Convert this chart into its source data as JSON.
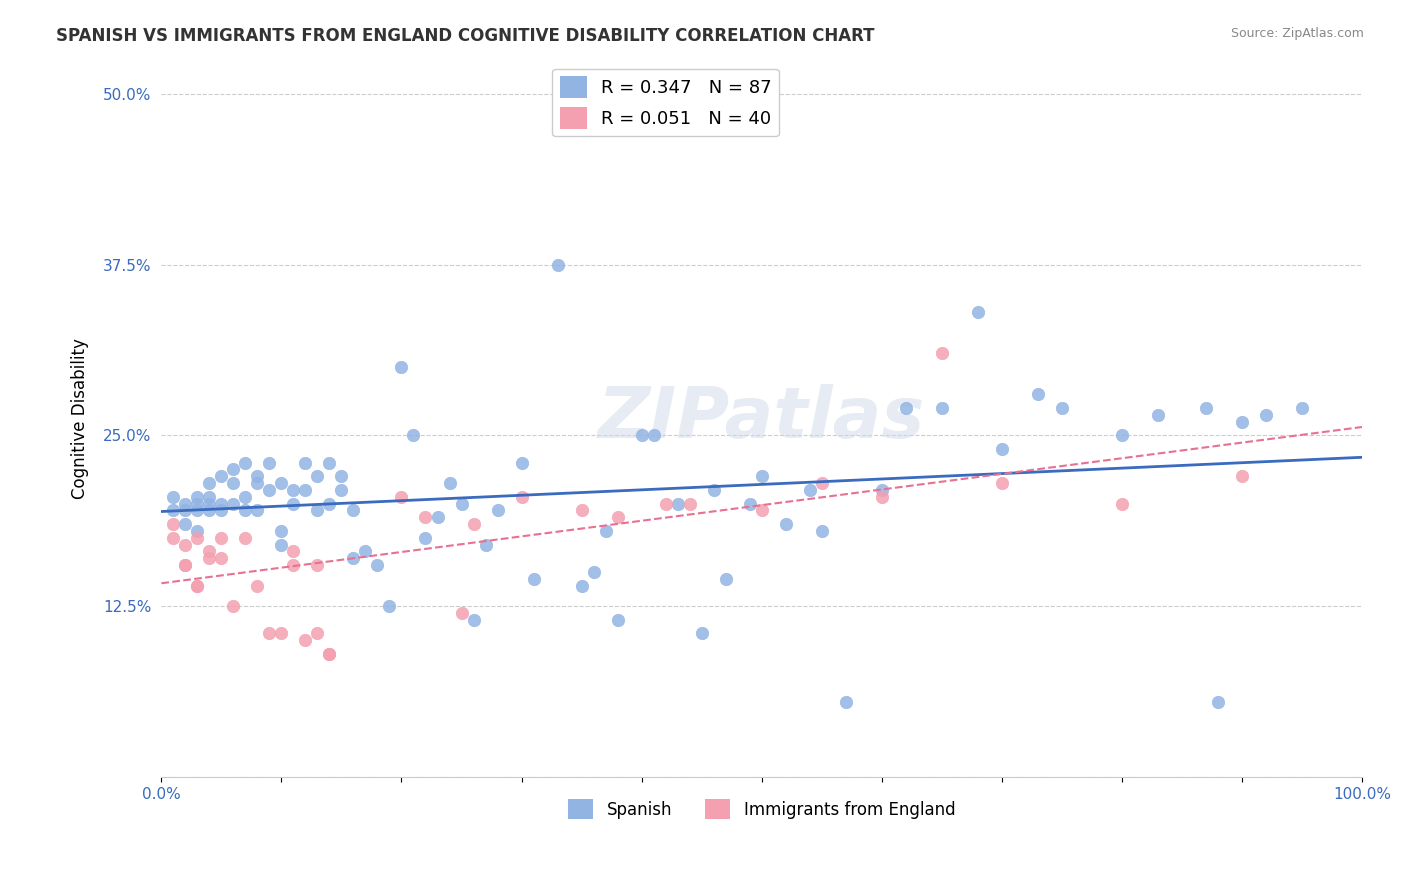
{
  "title": "SPANISH VS IMMIGRANTS FROM ENGLAND COGNITIVE DISABILITY CORRELATION CHART",
  "source": "Source: ZipAtlas.com",
  "xlabel": "",
  "ylabel": "Cognitive Disability",
  "xlim": [
    0.0,
    1.0
  ],
  "ylim": [
    0.0,
    0.525
  ],
  "yticks": [
    0.0,
    0.125,
    0.25,
    0.375,
    0.5
  ],
  "ytick_labels": [
    "",
    "12.5%",
    "25.0%",
    "37.5%",
    "50.0%"
  ],
  "xticks": [
    0.0,
    0.1,
    0.2,
    0.3,
    0.4,
    0.5,
    0.6,
    0.7,
    0.8,
    0.9,
    1.0
  ],
  "xtick_labels": [
    "0.0%",
    "",
    "",
    "",
    "",
    "",
    "",
    "",
    "",
    "",
    "100.0%"
  ],
  "spanish_color": "#92b4e3",
  "england_color": "#f4a0b0",
  "spanish_R": 0.347,
  "spanish_N": 87,
  "england_R": 0.051,
  "england_N": 40,
  "legend_label1": "Spanish",
  "legend_label2": "Immigrants from England",
  "watermark": "ZIPatlas",
  "spanish_x": [
    0.01,
    0.01,
    0.02,
    0.02,
    0.02,
    0.03,
    0.03,
    0.03,
    0.03,
    0.04,
    0.04,
    0.04,
    0.04,
    0.05,
    0.05,
    0.05,
    0.06,
    0.06,
    0.06,
    0.07,
    0.07,
    0.07,
    0.08,
    0.08,
    0.08,
    0.09,
    0.09,
    0.1,
    0.1,
    0.1,
    0.11,
    0.11,
    0.12,
    0.12,
    0.13,
    0.13,
    0.14,
    0.14,
    0.15,
    0.15,
    0.16,
    0.16,
    0.17,
    0.18,
    0.19,
    0.2,
    0.21,
    0.22,
    0.23,
    0.24,
    0.25,
    0.26,
    0.27,
    0.28,
    0.3,
    0.31,
    0.33,
    0.35,
    0.36,
    0.37,
    0.38,
    0.4,
    0.41,
    0.43,
    0.45,
    0.46,
    0.47,
    0.49,
    0.5,
    0.52,
    0.54,
    0.55,
    0.57,
    0.6,
    0.62,
    0.65,
    0.68,
    0.7,
    0.73,
    0.75,
    0.8,
    0.83,
    0.87,
    0.88,
    0.9,
    0.92,
    0.95
  ],
  "spanish_y": [
    0.195,
    0.205,
    0.2,
    0.195,
    0.185,
    0.195,
    0.2,
    0.205,
    0.18,
    0.195,
    0.2,
    0.205,
    0.215,
    0.195,
    0.2,
    0.22,
    0.2,
    0.215,
    0.225,
    0.195,
    0.205,
    0.23,
    0.215,
    0.22,
    0.195,
    0.21,
    0.23,
    0.17,
    0.18,
    0.215,
    0.21,
    0.2,
    0.21,
    0.23,
    0.195,
    0.22,
    0.2,
    0.23,
    0.21,
    0.22,
    0.195,
    0.16,
    0.165,
    0.155,
    0.125,
    0.3,
    0.25,
    0.175,
    0.19,
    0.215,
    0.2,
    0.115,
    0.17,
    0.195,
    0.23,
    0.145,
    0.375,
    0.14,
    0.15,
    0.18,
    0.115,
    0.25,
    0.25,
    0.2,
    0.105,
    0.21,
    0.145,
    0.2,
    0.22,
    0.185,
    0.21,
    0.18,
    0.055,
    0.21,
    0.27,
    0.27,
    0.34,
    0.24,
    0.28,
    0.27,
    0.25,
    0.265,
    0.27,
    0.055,
    0.26,
    0.265,
    0.27
  ],
  "england_x": [
    0.01,
    0.01,
    0.02,
    0.02,
    0.02,
    0.03,
    0.03,
    0.03,
    0.04,
    0.04,
    0.05,
    0.05,
    0.06,
    0.07,
    0.08,
    0.09,
    0.1,
    0.11,
    0.11,
    0.12,
    0.13,
    0.13,
    0.14,
    0.14,
    0.2,
    0.22,
    0.25,
    0.26,
    0.3,
    0.35,
    0.38,
    0.42,
    0.44,
    0.5,
    0.55,
    0.6,
    0.65,
    0.7,
    0.8,
    0.9
  ],
  "england_y": [
    0.175,
    0.185,
    0.17,
    0.155,
    0.155,
    0.14,
    0.175,
    0.14,
    0.16,
    0.165,
    0.175,
    0.16,
    0.125,
    0.175,
    0.14,
    0.105,
    0.105,
    0.165,
    0.155,
    0.1,
    0.105,
    0.155,
    0.09,
    0.09,
    0.205,
    0.19,
    0.12,
    0.185,
    0.205,
    0.195,
    0.19,
    0.2,
    0.2,
    0.195,
    0.215,
    0.205,
    0.31,
    0.215,
    0.2,
    0.22
  ]
}
